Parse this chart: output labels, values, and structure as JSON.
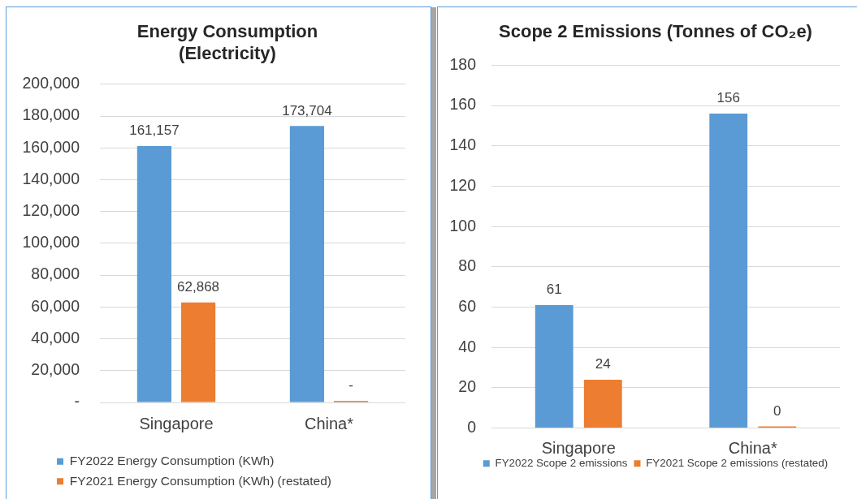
{
  "chart_data": [
    {
      "type": "bar",
      "title": "Energy Consumption (Electricity)",
      "categories": [
        "Singapore",
        "China*"
      ],
      "series": [
        {
          "name": "FY2022 Energy Consumption (KWh)",
          "color": "#5b9bd5",
          "values": [
            161157,
            173704
          ],
          "value_labels": [
            "161,157",
            "173,704"
          ]
        },
        {
          "name": "FY2021 Energy Consumption (KWh) (restated)",
          "color": "#ed7d31",
          "values": [
            62868,
            0
          ],
          "value_labels": [
            "62,868",
            "-"
          ]
        }
      ],
      "ylim": [
        0,
        200000
      ],
      "yticks": [
        {
          "value": 0,
          "label": "-"
        },
        {
          "value": 20000,
          "label": "20,000"
        },
        {
          "value": 40000,
          "label": "40,000"
        },
        {
          "value": 60000,
          "label": "60,000"
        },
        {
          "value": 80000,
          "label": "80,000"
        },
        {
          "value": 100000,
          "label": "100,000"
        },
        {
          "value": 120000,
          "label": "120,000"
        },
        {
          "value": 140000,
          "label": "140,000"
        },
        {
          "value": 160000,
          "label": "160,000"
        },
        {
          "value": 180000,
          "label": "180,000"
        },
        {
          "value": 200000,
          "label": "200,000"
        }
      ],
      "grid": "y",
      "legend": "bottom"
    },
    {
      "type": "bar",
      "title": "Scope 2 Emissions (Tonnes of CO₂e)",
      "categories": [
        "Singapore",
        "China*"
      ],
      "series": [
        {
          "name": "FY2022 Scope 2 emissions",
          "color": "#5b9bd5",
          "values": [
            61,
            156
          ]
        },
        {
          "name": "FY2021 Scope 2 emissions (restated)",
          "color": "#ed7d31",
          "values": [
            24,
            0
          ]
        }
      ],
      "ylim": [
        0,
        180
      ],
      "yticks": [
        0,
        20,
        40,
        60,
        80,
        100,
        120,
        140,
        160,
        180
      ],
      "data_labels": true,
      "grid": "y",
      "legend": "bottom"
    }
  ]
}
